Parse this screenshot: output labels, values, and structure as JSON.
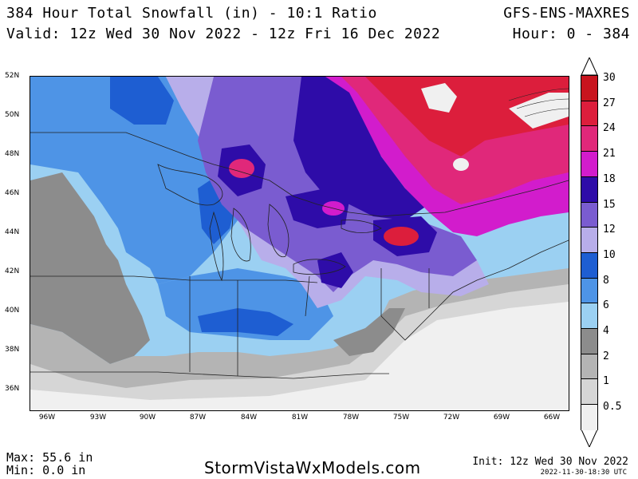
{
  "header": {
    "title": "384 Hour Total Snowfall (in) - 10:1 Ratio",
    "valid": "Valid: 12z Wed 30 Nov 2022 - 12z Fri 16 Dec 2022",
    "model": "GFS-ENS-MAXRES",
    "hour": "Hour: 0 - 384"
  },
  "map": {
    "lat_labels": [
      "52N",
      "50N",
      "48N",
      "46N",
      "44N",
      "42N",
      "40N",
      "38N",
      "36N"
    ],
    "lon_labels": [
      "96W",
      "93W",
      "90W",
      "87W",
      "84W",
      "81W",
      "78W",
      "75W",
      "72W",
      "69W",
      "66W"
    ]
  },
  "legend": {
    "levels": [
      {
        "label": "30",
        "color": "#c8141e"
      },
      {
        "label": "27",
        "color": "#dc1e3c"
      },
      {
        "label": "24",
        "color": "#e0287a"
      },
      {
        "label": "21",
        "color": "#d21ccc"
      },
      {
        "label": "18",
        "color": "#2e0ca8"
      },
      {
        "label": "15",
        "color": "#7a5cd0"
      },
      {
        "label": "12",
        "color": "#b8aeea"
      },
      {
        "label": "10",
        "color": "#1e5ed2"
      },
      {
        "label": "8",
        "color": "#4e94e6"
      },
      {
        "label": "6",
        "color": "#9bd0f2"
      },
      {
        "label": "4",
        "color": "#8c8c8c"
      },
      {
        "label": "2",
        "color": "#b4b4b4"
      },
      {
        "label": "1",
        "color": "#d6d6d6"
      },
      {
        "label": "0.5",
        "color": "#f0f0f0"
      }
    ]
  },
  "footer": {
    "max": "Max: 55.6 in",
    "min": "Min: 0.0 in",
    "site": "StormVistaWxModels.com",
    "init": "Init: 12z Wed 30 Nov 2022",
    "stamp": "2022-11-30-18:30 UTC"
  }
}
